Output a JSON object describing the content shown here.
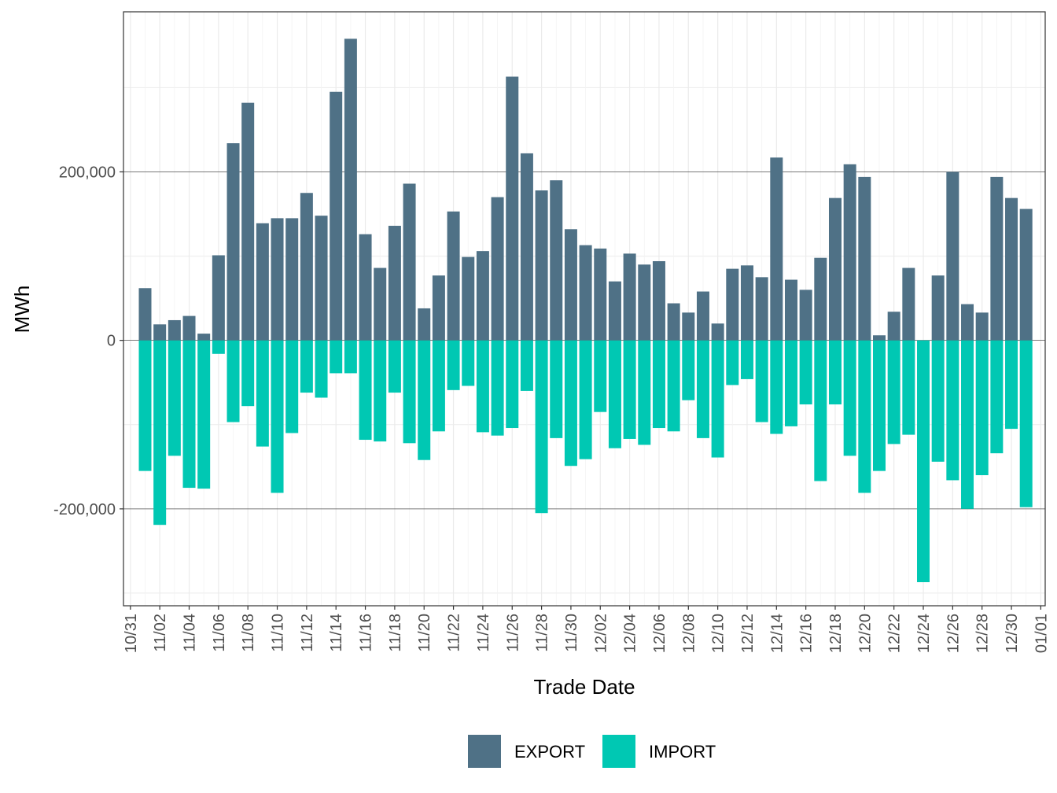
{
  "chart_data": {
    "type": "bar",
    "stacked": "diverging",
    "xlabel": "Trade Date",
    "ylabel": "MWh",
    "ylim": [
      -315000,
      390000
    ],
    "y_ticks": [
      -200000,
      0,
      200000
    ],
    "y_tick_labels": [
      "-200,000",
      "0",
      "200,000"
    ],
    "x_ticks": [
      "10/31",
      "11/02",
      "11/04",
      "11/06",
      "11/08",
      "11/10",
      "11/12",
      "11/14",
      "11/16",
      "11/18",
      "11/20",
      "11/22",
      "11/24",
      "11/26",
      "11/28",
      "11/30",
      "12/02",
      "12/04",
      "12/06",
      "12/08",
      "12/10",
      "12/12",
      "12/14",
      "12/16",
      "12/18",
      "12/20",
      "12/22",
      "12/24",
      "12/26",
      "12/28",
      "12/30",
      "01/01"
    ],
    "grid": true,
    "legend_position": "bottom",
    "categories": [
      "11/01",
      "11/02",
      "11/03",
      "11/04",
      "11/05",
      "11/06",
      "11/07",
      "11/08",
      "11/09",
      "11/10",
      "11/11",
      "11/12",
      "11/13",
      "11/14",
      "11/15",
      "11/16",
      "11/17",
      "11/18",
      "11/19",
      "11/20",
      "11/21",
      "11/22",
      "11/23",
      "11/24",
      "11/25",
      "11/26",
      "11/27",
      "11/28",
      "11/29",
      "11/30",
      "12/01",
      "12/02",
      "12/03",
      "12/04",
      "12/05",
      "12/06",
      "12/07",
      "12/08",
      "12/09",
      "12/10",
      "12/11",
      "12/12",
      "12/13",
      "12/14",
      "12/15",
      "12/16",
      "12/17",
      "12/18",
      "12/19",
      "12/20",
      "12/21",
      "12/22",
      "12/23",
      "12/24",
      "12/25",
      "12/26",
      "12/27",
      "12/28",
      "12/29",
      "12/30",
      "12/31"
    ],
    "series": [
      {
        "name": "EXPORT",
        "color": "#4f7186",
        "values": [
          62000,
          19000,
          24000,
          29000,
          8000,
          101000,
          234000,
          282000,
          139000,
          145000,
          145000,
          175000,
          148000,
          295000,
          358000,
          126000,
          86000,
          136000,
          186000,
          38000,
          77000,
          153000,
          99000,
          106000,
          170000,
          313000,
          222000,
          178000,
          190000,
          132000,
          113000,
          109000,
          70000,
          103000,
          90000,
          94000,
          44000,
          33000,
          58000,
          20000,
          85000,
          89000,
          75000,
          217000,
          72000,
          60000,
          98000,
          169000,
          209000,
          194000,
          6000,
          34000,
          86000,
          0,
          77000,
          200000,
          43000,
          33000,
          194000,
          169000,
          156000
        ]
      },
      {
        "name": "IMPORT",
        "color": "#00c8b3",
        "values": [
          -155000,
          -219000,
          -137000,
          -175000,
          -176000,
          -16000,
          -97000,
          -78000,
          -126000,
          -181000,
          -110000,
          -62000,
          -68000,
          -39000,
          -39000,
          -118000,
          -120000,
          -62000,
          -122000,
          -142000,
          -108000,
          -59000,
          -54000,
          -109000,
          -113000,
          -104000,
          -60000,
          -205000,
          -116000,
          -149000,
          -141000,
          -85000,
          -128000,
          -117000,
          -124000,
          -104000,
          -108000,
          -71000,
          -116000,
          -139000,
          -53000,
          -46000,
          -97000,
          -111000,
          -102000,
          -76000,
          -167000,
          -76000,
          -137000,
          -181000,
          -155000,
          -123000,
          -112000,
          -287000,
          -144000,
          -166000,
          -200000,
          -160000,
          -134000,
          -105000,
          -198000
        ]
      }
    ]
  }
}
